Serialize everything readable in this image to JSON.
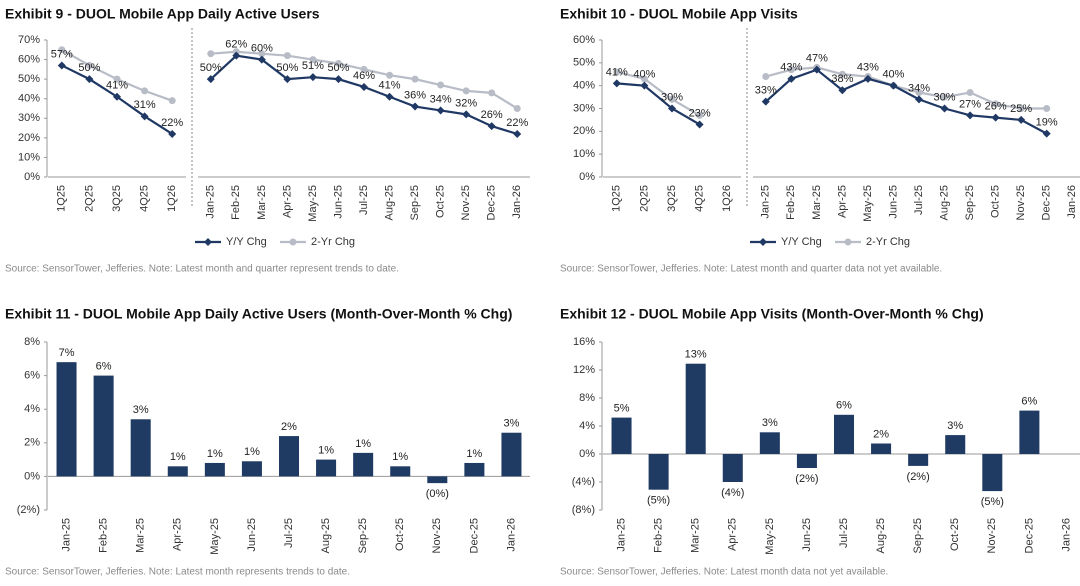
{
  "chart_data": [
    {
      "type": "line",
      "title": "Exhibit 9 - DUOL Mobile App Daily Active Users",
      "series": [
        {
          "name": "Y/Y Chg",
          "color": "#1f3864"
        },
        {
          "name": "2-Yr Chg",
          "color": "#b8bcc6"
        }
      ],
      "panels": [
        {
          "categories": [
            "1Q25",
            "2Q25",
            "3Q25",
            "4Q25",
            "1Q26"
          ],
          "series": [
            {
              "values": [
                57,
                50,
                41,
                31,
                22
              ],
              "value_labels": [
                "57%",
                "50%",
                "41%",
                "31%",
                "22%"
              ]
            },
            {
              "values": [
                65,
                57,
                50,
                44,
                39
              ]
            }
          ]
        },
        {
          "categories": [
            "Jan-25",
            "Feb-25",
            "Mar-25",
            "Apr-25",
            "May-25",
            "Jun-25",
            "Jul-25",
            "Aug-25",
            "Sep-25",
            "Oct-25",
            "Nov-25",
            "Dec-25",
            "Jan-26"
          ],
          "series": [
            {
              "values": [
                50,
                62,
                60,
                50,
                51,
                50,
                46,
                41,
                36,
                34,
                32,
                26,
                22
              ],
              "value_labels": [
                "50%",
                "62%",
                "60%",
                "50%",
                "51%",
                "50%",
                "46%",
                "41%",
                "36%",
                "34%",
                "32%",
                "26%",
                "22%"
              ]
            },
            {
              "values": [
                63,
                64,
                63,
                62,
                60,
                58,
                55,
                52,
                50,
                47,
                44,
                43,
                35
              ]
            }
          ]
        }
      ],
      "ylim": [
        0,
        70
      ],
      "yticks": [
        {
          "value": 0,
          "label": "0%"
        },
        {
          "value": 10,
          "label": "10%"
        },
        {
          "value": 20,
          "label": "20%"
        },
        {
          "value": 30,
          "label": "30%"
        },
        {
          "value": 40,
          "label": "40%"
        },
        {
          "value": 50,
          "label": "50%"
        },
        {
          "value": 60,
          "label": "60%"
        },
        {
          "value": 70,
          "label": "70%"
        }
      ],
      "source": "Source: SensorTower, Jefferies. Note: Latest month and quarter represent trends to date."
    },
    {
      "type": "line",
      "title": "Exhibit 10 - DUOL Mobile App Visits",
      "series": [
        {
          "name": "Y/Y Chg",
          "color": "#1f3864"
        },
        {
          "name": "2-Yr Chg",
          "color": "#b8bcc6"
        }
      ],
      "panels": [
        {
          "categories": [
            "1Q25",
            "2Q25",
            "3Q25",
            "4Q25",
            "1Q26"
          ],
          "series": [
            {
              "values": [
                41,
                40,
                30,
                23,
                null
              ],
              "value_labels": [
                "41%",
                "40%",
                "30%",
                "23%",
                null
              ]
            },
            {
              "values": [
                46,
                43,
                34,
                27,
                null
              ]
            }
          ]
        },
        {
          "categories": [
            "Jan-25",
            "Feb-25",
            "Mar-25",
            "Apr-25",
            "May-25",
            "Jun-25",
            "Jul-25",
            "Aug-25",
            "Sep-25",
            "Oct-25",
            "Nov-25",
            "Dec-25",
            "Jan-26"
          ],
          "series": [
            {
              "values": [
                33,
                43,
                47,
                38,
                43,
                40,
                34,
                30,
                27,
                26,
                25,
                19,
                null
              ],
              "value_labels": [
                "33%",
                "43%",
                "47%",
                "38%",
                "43%",
                "40%",
                "34%",
                "30%",
                "27%",
                "26%",
                "25%",
                "19%",
                null
              ]
            },
            {
              "values": [
                44,
                47,
                48,
                45,
                44,
                40,
                37,
                35,
                37,
                32,
                30,
                30,
                null
              ]
            }
          ]
        }
      ],
      "ylim": [
        0,
        60
      ],
      "yticks": [
        {
          "value": 0,
          "label": "0%"
        },
        {
          "value": 10,
          "label": "10%"
        },
        {
          "value": 20,
          "label": "20%"
        },
        {
          "value": 30,
          "label": "30%"
        },
        {
          "value": 40,
          "label": "40%"
        },
        {
          "value": 50,
          "label": "50%"
        },
        {
          "value": 60,
          "label": "60%"
        }
      ],
      "source": "Source: SensorTower, Jefferies. Note: Latest month and quarter data not yet available."
    },
    {
      "type": "bar",
      "title": "Exhibit 11 - DUOL Mobile App Daily Active Users (Month-Over-Month % Chg)",
      "categories": [
        "Jan-25",
        "Feb-25",
        "Mar-25",
        "Apr-25",
        "May-25",
        "Jun-25",
        "Jul-25",
        "Aug-25",
        "Sep-25",
        "Oct-25",
        "Nov-25",
        "Dec-25",
        "Jan-26"
      ],
      "values": [
        6.8,
        6.0,
        3.4,
        0.6,
        0.8,
        0.9,
        2.4,
        1.0,
        1.4,
        0.6,
        -0.4,
        0.8,
        2.6
      ],
      "value_labels": [
        "7%",
        "6%",
        "3%",
        "1%",
        "1%",
        "1%",
        "2%",
        "1%",
        "1%",
        "1%",
        "(0%)",
        "1%",
        "3%"
      ],
      "color": "#1f3a63",
      "ylim": [
        -2,
        8
      ],
      "yticks": [
        {
          "value": -2,
          "label": "(2%)"
        },
        {
          "value": 0,
          "label": "0%"
        },
        {
          "value": 2,
          "label": "2%"
        },
        {
          "value": 4,
          "label": "4%"
        },
        {
          "value": 6,
          "label": "6%"
        },
        {
          "value": 8,
          "label": "8%"
        }
      ],
      "source": "Source: SensorTower, Jefferies. Note: Latest month represents trends to date."
    },
    {
      "type": "bar",
      "title": "Exhibit 12 - DUOL Mobile App Visits (Month-Over-Month % Chg)",
      "categories": [
        "Jan-25",
        "Feb-25",
        "Mar-25",
        "Apr-25",
        "May-25",
        "Jun-25",
        "Jul-25",
        "Aug-25",
        "Sep-25",
        "Oct-25",
        "Nov-25",
        "Dec-25",
        "Jan-26"
      ],
      "values": [
        5.2,
        -5.1,
        12.9,
        -4.0,
        3.1,
        -2.0,
        5.6,
        1.5,
        -1.7,
        2.7,
        -5.3,
        6.2,
        null
      ],
      "value_labels": [
        "5%",
        "(5%)",
        "13%",
        "(4%)",
        "3%",
        "(2%)",
        "6%",
        "2%",
        "(2%)",
        "3%",
        "(5%)",
        "6%",
        null
      ],
      "color": "#1f3a63",
      "ylim": [
        -8,
        16
      ],
      "yticks": [
        {
          "value": -8,
          "label": "(8%)"
        },
        {
          "value": -4,
          "label": "(4%)"
        },
        {
          "value": 0,
          "label": "0%"
        },
        {
          "value": 4,
          "label": "4%"
        },
        {
          "value": 8,
          "label": "8%"
        },
        {
          "value": 12,
          "label": "12%"
        },
        {
          "value": 16,
          "label": "16%"
        }
      ],
      "source": "Source: SensorTower, Jefferies. Note: Latest month data not yet available."
    }
  ]
}
